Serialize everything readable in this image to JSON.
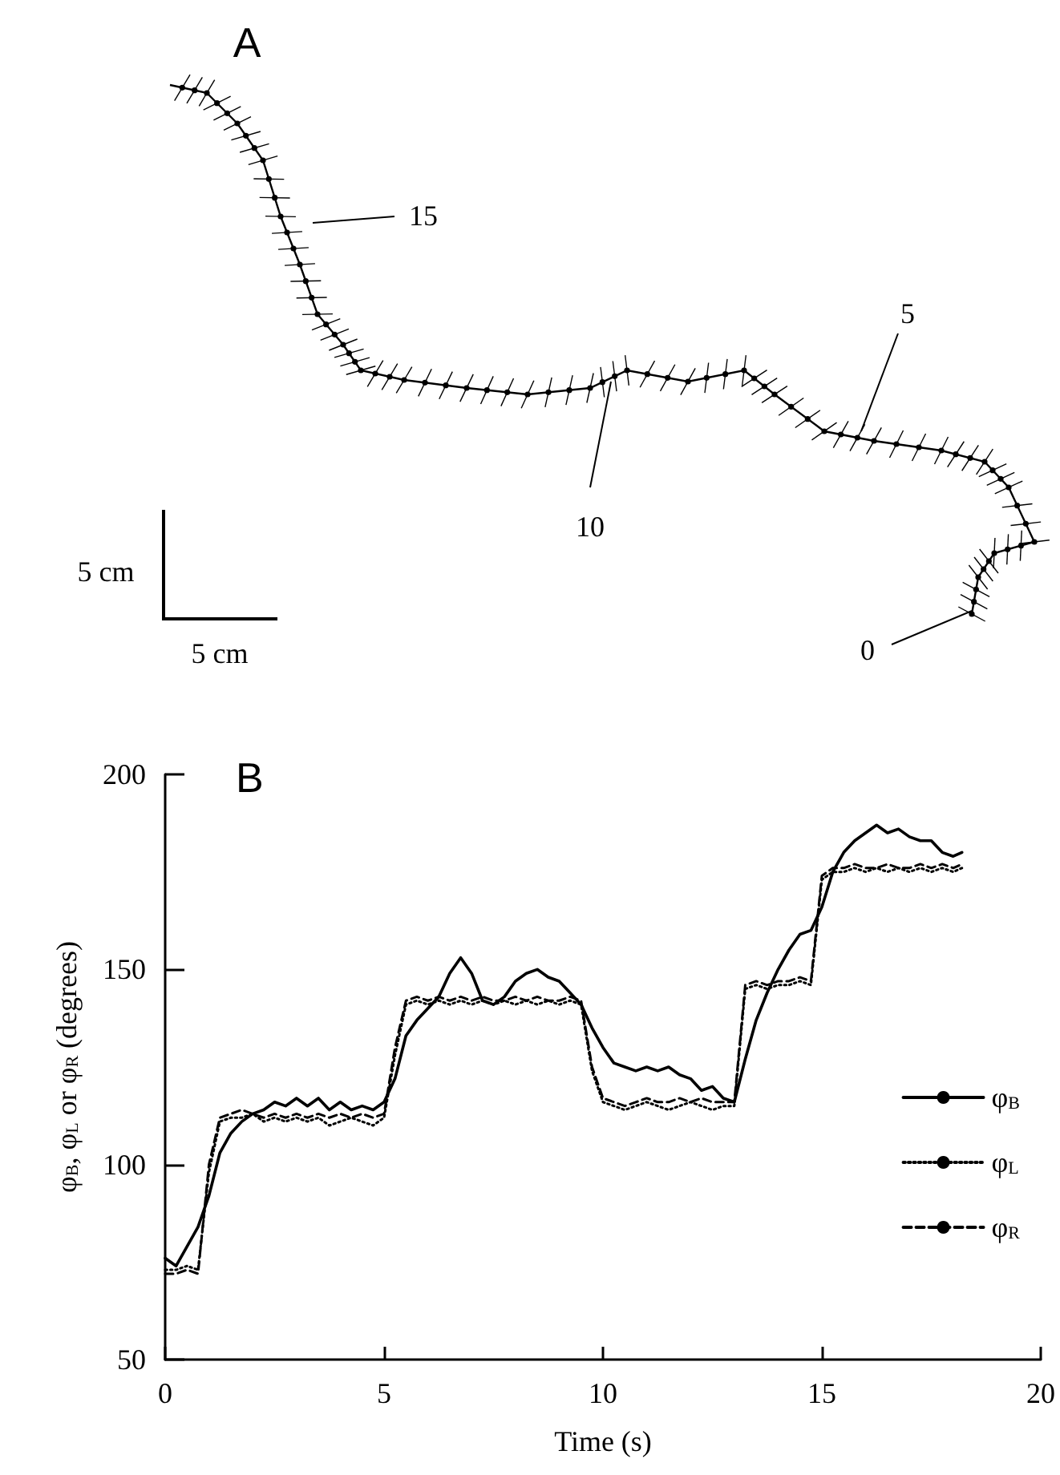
{
  "chart_data": [
    {
      "type": "other",
      "title": "A",
      "annotations": [
        "15",
        "10",
        "5",
        "0",
        "5 cm",
        "5 cm"
      ]
    },
    {
      "type": "line",
      "title": "B",
      "xlabel": "Time (s)",
      "ylabel": "φ$_{B}$, φ$_{L}$ or φ$_{R}$ (degrees)",
      "x": [
        0,
        0.25,
        0.5,
        0.75,
        1,
        1.25,
        1.5,
        1.75,
        2,
        2.25,
        2.5,
        2.75,
        3,
        3.25,
        3.5,
        3.75,
        4,
        4.25,
        4.5,
        4.75,
        5,
        5.25,
        5.5,
        5.75,
        6,
        6.25,
        6.5,
        6.75,
        7,
        7.25,
        7.5,
        7.75,
        8,
        8.25,
        8.5,
        8.75,
        9,
        9.25,
        9.5,
        9.75,
        10,
        10.25,
        10.5,
        10.75,
        11,
        11.25,
        11.5,
        11.75,
        12,
        12.25,
        12.5,
        12.75,
        13,
        13.25,
        13.5,
        13.75,
        14,
        14.25,
        14.5,
        14.75,
        15,
        15.25,
        15.5,
        15.75,
        16,
        16.25,
        16.5,
        16.75,
        17,
        17.25,
        17.5,
        17.75,
        18,
        18.2
      ],
      "series": [
        {
          "name": "φ$_{B}$",
          "color": "#000000",
          "line_style": "solid",
          "values": [
            76,
            74,
            79,
            84,
            92,
            103,
            108,
            111,
            113,
            114,
            116,
            115,
            117,
            115,
            117,
            114,
            116,
            114,
            115,
            114,
            116,
            122,
            133,
            137,
            140,
            143,
            149,
            153,
            149,
            142,
            141,
            143,
            147,
            149,
            150,
            148,
            147,
            144,
            141,
            135,
            130,
            126,
            125,
            124,
            125,
            124,
            125,
            123,
            122,
            119,
            120,
            117,
            116,
            127,
            137,
            144,
            150,
            155,
            159,
            160,
            166,
            175,
            180,
            183,
            185,
            187,
            185,
            186,
            184,
            183,
            183,
            180,
            179,
            180
          ]
        },
        {
          "name": "φ$_{L}$",
          "color": "#000000",
          "line_style": "dotted",
          "values": [
            73,
            73,
            74,
            73,
            98,
            111,
            112,
            112,
            113,
            111,
            112,
            111,
            112,
            111,
            112,
            110,
            111,
            112,
            111,
            110,
            112,
            128,
            141,
            142,
            141,
            142,
            141,
            142,
            141,
            142,
            141,
            142,
            141,
            142,
            141,
            142,
            141,
            142,
            141,
            124,
            116,
            115,
            114,
            115,
            116,
            115,
            114,
            115,
            116,
            115,
            114,
            115,
            115,
            145,
            146,
            145,
            146,
            146,
            147,
            146,
            173,
            175,
            175,
            176,
            175,
            176,
            175,
            176,
            175,
            176,
            175,
            176,
            175,
            176
          ]
        },
        {
          "name": "φ$_{R}$",
          "color": "#000000",
          "line_style": "dashed",
          "values": [
            72,
            72,
            73,
            72,
            100,
            112,
            113,
            114,
            113,
            112,
            113,
            112,
            113,
            112,
            113,
            112,
            113,
            112,
            113,
            112,
            113,
            130,
            142,
            143,
            142,
            143,
            142,
            143,
            142,
            143,
            142,
            142,
            143,
            142,
            143,
            142,
            142,
            143,
            142,
            125,
            117,
            116,
            115,
            116,
            117,
            116,
            116,
            117,
            116,
            117,
            116,
            116,
            116,
            146,
            147,
            146,
            147,
            147,
            148,
            147,
            174,
            176,
            176,
            177,
            176,
            176,
            177,
            176,
            176,
            177,
            176,
            177,
            176,
            177
          ]
        }
      ],
      "xlim": [
        0,
        20
      ],
      "xticks": [
        0,
        5,
        10,
        15,
        20
      ],
      "ylim": [
        50,
        200
      ],
      "yticks": [
        50,
        100,
        150,
        200
      ],
      "grid": false,
      "legend": "bottom right",
      "marker": "none"
    }
  ]
}
